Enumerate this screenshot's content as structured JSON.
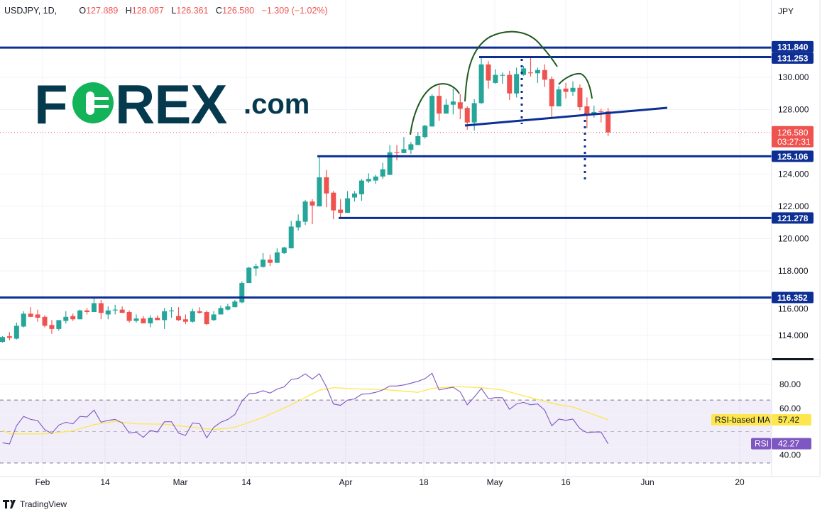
{
  "header": {
    "symbol": "USDJPY, 1D,",
    "open_label": "O",
    "open": "127.889",
    "high_label": "H",
    "high": "128.087",
    "low_label": "L",
    "low": "126.361",
    "close_label": "C",
    "close": "126.580",
    "change": "−1.309 (−1.02%)"
  },
  "currency": "JPY",
  "logo": {
    "text": "FOREX.com",
    "primary_color": "#053a4e",
    "accent_color": "#13b35a"
  },
  "footer": {
    "brand": "TradingView"
  },
  "colors": {
    "up": "#26a69a",
    "down": "#ef5350",
    "drawing": "#0d2f94",
    "pattern_curve": "#1f5a1f",
    "rsi": "#7e57c2",
    "rsi_ma": "#fde74c"
  },
  "price_axis": {
    "ticks": [
      "114.000",
      "116.000",
      "118.000",
      "120.000",
      "122.000",
      "124.000",
      "128.000",
      "130.000"
    ],
    "tick_values": [
      114,
      116,
      118,
      120,
      122,
      124,
      128,
      130
    ],
    "range": [
      112.5,
      132.5
    ]
  },
  "levels": [
    {
      "label": "131.840",
      "value": 131.84
    },
    {
      "label": "131.253",
      "value": 131.253
    },
    {
      "label": "125.106",
      "value": 125.106
    },
    {
      "label": "121.278",
      "value": 121.278
    },
    {
      "label": "116.352",
      "value": 116.352
    }
  ],
  "last_price": {
    "label": "126.580",
    "value": 126.58,
    "countdown": "03:27:31"
  },
  "time_axis": [
    "Feb",
    "14",
    "Mar",
    "14",
    "Apr",
    "18",
    "May",
    "16",
    "Jun",
    "20"
  ],
  "rsi_axis": {
    "ticks": [
      "80.00",
      "60.00",
      "40.00"
    ],
    "tick_values": [
      80,
      60,
      40
    ],
    "bands": [
      70,
      50,
      30
    ]
  },
  "rsi_labels": {
    "ma_name": "RSI-based MA",
    "ma_value": "57.42",
    "rsi_name": "RSI",
    "rsi_value": "42.27"
  },
  "chart_data": {
    "type": "candlestick",
    "ohlc": [
      [
        113.6,
        113.95,
        113.55,
        113.9
      ],
      [
        113.95,
        114.2,
        113.7,
        113.85
      ],
      [
        113.8,
        114.8,
        113.75,
        114.6
      ],
      [
        114.55,
        115.5,
        114.5,
        115.35
      ],
      [
        115.35,
        115.75,
        115.15,
        115.15
      ],
      [
        115.3,
        115.6,
        114.85,
        115.1
      ],
      [
        115.15,
        115.25,
        114.5,
        114.6
      ],
      [
        114.65,
        114.95,
        114.1,
        114.4
      ],
      [
        114.4,
        114.95,
        114.3,
        114.95
      ],
      [
        114.9,
        115.5,
        114.75,
        115.15
      ],
      [
        115.2,
        115.35,
        114.9,
        115.0
      ],
      [
        115.0,
        115.6,
        115.0,
        115.55
      ],
      [
        115.55,
        115.7,
        115.3,
        115.45
      ],
      [
        115.45,
        116.3,
        115.45,
        116.0
      ],
      [
        116.0,
        116.2,
        115.0,
        115.4
      ],
      [
        115.3,
        115.8,
        115.0,
        115.55
      ],
      [
        115.55,
        115.9,
        115.3,
        115.6
      ],
      [
        115.6,
        115.8,
        115.4,
        115.4
      ],
      [
        115.45,
        115.55,
        114.8,
        114.9
      ],
      [
        114.9,
        115.3,
        114.8,
        115.05
      ],
      [
        115.05,
        115.2,
        114.75,
        114.75
      ],
      [
        114.75,
        115.25,
        114.5,
        115.1
      ],
      [
        115.1,
        115.25,
        114.95,
        114.95
      ],
      [
        114.95,
        115.7,
        114.4,
        115.5
      ],
      [
        115.5,
        115.75,
        115.1,
        115.55
      ],
      [
        115.2,
        115.75,
        114.9,
        114.95
      ],
      [
        115.0,
        115.3,
        114.7,
        114.85
      ],
      [
        114.85,
        115.65,
        114.8,
        115.5
      ],
      [
        115.5,
        115.75,
        115.35,
        115.4
      ],
      [
        115.45,
        115.55,
        114.65,
        114.7
      ],
      [
        114.95,
        115.5,
        114.9,
        115.3
      ],
      [
        115.3,
        115.85,
        115.3,
        115.7
      ],
      [
        115.6,
        115.95,
        115.55,
        115.8
      ],
      [
        115.75,
        116.2,
        115.75,
        116.1
      ],
      [
        116.05,
        117.35,
        116.0,
        117.25
      ],
      [
        117.25,
        118.25,
        117.25,
        118.2
      ],
      [
        118.15,
        118.45,
        117.7,
        118.3
      ],
      [
        118.25,
        119.1,
        118.2,
        118.7
      ],
      [
        118.7,
        119.0,
        118.3,
        118.5
      ],
      [
        118.5,
        119.4,
        118.5,
        119.15
      ],
      [
        119.1,
        119.5,
        119.05,
        119.45
      ],
      [
        119.4,
        121.1,
        119.4,
        120.75
      ],
      [
        120.7,
        121.5,
        120.5,
        121.1
      ],
      [
        121.05,
        122.4,
        120.85,
        122.3
      ],
      [
        122.3,
        122.45,
        120.9,
        122.05
      ],
      [
        122.0,
        125.1,
        122.0,
        123.8
      ],
      [
        123.8,
        124.25,
        121.95,
        122.8
      ],
      [
        122.85,
        122.95,
        121.2,
        121.75
      ],
      [
        121.8,
        122.45,
        121.3,
        121.6
      ],
      [
        121.6,
        122.95,
        121.6,
        122.5
      ],
      [
        122.55,
        122.95,
        122.3,
        122.8
      ],
      [
        122.75,
        123.7,
        122.35,
        123.6
      ],
      [
        123.55,
        124.05,
        123.45,
        123.7
      ],
      [
        123.6,
        123.95,
        123.4,
        123.85
      ],
      [
        123.85,
        124.7,
        123.7,
        124.3
      ],
      [
        123.95,
        125.8,
        123.95,
        125.35
      ],
      [
        125.35,
        125.8,
        124.85,
        125.3
      ],
      [
        125.3,
        126.3,
        125.3,
        125.55
      ],
      [
        125.5,
        126.0,
        125.25,
        125.85
      ],
      [
        125.8,
        126.6,
        125.8,
        126.35
      ],
      [
        126.3,
        127.05,
        126.2,
        127.0
      ],
      [
        126.95,
        128.95,
        126.95,
        128.85
      ],
      [
        128.85,
        129.5,
        127.3,
        127.75
      ],
      [
        127.75,
        128.65,
        127.75,
        128.3
      ],
      [
        128.3,
        129.3,
        127.7,
        128.5
      ],
      [
        128.45,
        128.95,
        127.4,
        128.05
      ],
      [
        128.1,
        128.2,
        126.75,
        127.2
      ],
      [
        127.2,
        128.65,
        126.7,
        128.4
      ],
      [
        128.4,
        131.25,
        128.35,
        130.8
      ],
      [
        130.8,
        131.0,
        129.3,
        129.8
      ],
      [
        129.65,
        130.5,
        129.6,
        130.15
      ],
      [
        130.1,
        130.3,
        129.6,
        130.15
      ],
      [
        130.15,
        130.4,
        128.6,
        129.0
      ],
      [
        129.0,
        130.6,
        128.75,
        130.2
      ],
      [
        130.15,
        130.7,
        130.1,
        130.55
      ],
      [
        130.3,
        131.2,
        130.05,
        130.25
      ],
      [
        130.25,
        130.6,
        129.65,
        130.45
      ],
      [
        130.45,
        130.8,
        129.4,
        129.85
      ],
      [
        129.9,
        130.05,
        127.5,
        128.2
      ],
      [
        128.2,
        129.45,
        128.2,
        129.25
      ],
      [
        129.3,
        129.65,
        128.7,
        129.1
      ],
      [
        129.1,
        129.75,
        128.85,
        129.35
      ],
      [
        129.35,
        129.55,
        127.95,
        128.15
      ],
      [
        128.2,
        128.75,
        126.85,
        127.75
      ],
      [
        127.75,
        128.25,
        127.5,
        127.85
      ],
      [
        127.9,
        128.05,
        127.2,
        127.85
      ],
      [
        127.889,
        128.087,
        126.361,
        126.58
      ]
    ],
    "rsi": [
      42.9,
      42.1,
      53.7,
      59.6,
      57.7,
      57.0,
      51.2,
      48.8,
      54.1,
      55.9,
      54.9,
      59.6,
      59.3,
      63.6,
      55.9,
      57.1,
      57.7,
      55.5,
      49.0,
      49.7,
      46.3,
      50.7,
      49.7,
      56.2,
      56.2,
      49.0,
      47.5,
      55.5,
      54.9,
      46.0,
      52.7,
      55.9,
      57.7,
      60.8,
      69.3,
      74.0,
      74.4,
      75.9,
      74.4,
      77.0,
      78.4,
      83.0,
      83.8,
      86.6,
      83.3,
      86.7,
      78.4,
      67.5,
      66.6,
      70.0,
      70.7,
      73.7,
      74.0,
      74.9,
      76.4,
      78.9,
      78.9,
      79.6,
      80.7,
      81.9,
      83.6,
      87.0,
      76.4,
      77.4,
      78.1,
      75.2,
      67.0,
      71.9,
      77.4,
      71.0,
      71.5,
      71.5,
      64.1,
      67.5,
      68.5,
      67.0,
      67.5,
      63.6,
      53.7,
      57.9,
      57.1,
      57.9,
      51.9,
      49.3,
      49.7,
      49.7,
      42.27
    ],
    "rsi_ma_points": [
      [
        0,
        51.0
      ],
      [
        1,
        48.5
      ],
      [
        6,
        48.5
      ],
      [
        10,
        50.4
      ],
      [
        13,
        54.4
      ],
      [
        16,
        56.4
      ],
      [
        19,
        54.9
      ],
      [
        23,
        54.7
      ],
      [
        27,
        52.7
      ],
      [
        30,
        51.2
      ],
      [
        33,
        52.7
      ],
      [
        37,
        58.9
      ],
      [
        41,
        67.0
      ],
      [
        45,
        76.2
      ],
      [
        47,
        77.9
      ],
      [
        50,
        77.1
      ],
      [
        54,
        76.7
      ],
      [
        59,
        74.9
      ],
      [
        61,
        77.4
      ],
      [
        64,
        78.6
      ],
      [
        68,
        77.9
      ],
      [
        71,
        76.4
      ],
      [
        75,
        71.5
      ],
      [
        79,
        67.0
      ],
      [
        81,
        65.6
      ],
      [
        86,
        57.42
      ]
    ],
    "rsi_range": [
      20,
      100
    ]
  }
}
